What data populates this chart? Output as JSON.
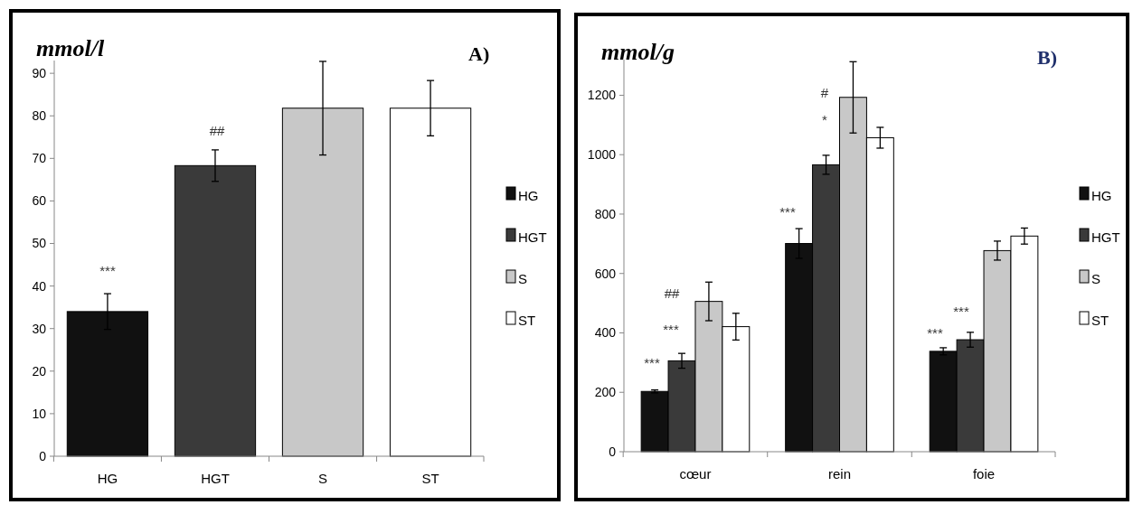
{
  "chart_data": [
    {
      "type": "bar",
      "title": "A)",
      "ylabel": "mmol/l",
      "categories": [
        "HG",
        "HGT",
        "S",
        "ST"
      ],
      "ylim": [
        0,
        93
      ],
      "yticks": [
        0,
        10,
        20,
        30,
        40,
        50,
        60,
        70,
        80,
        90
      ],
      "legend": "right",
      "series": [
        {
          "name": "HG",
          "color": "#111111",
          "values": [
            34,
            null,
            null,
            null
          ],
          "errors": [
            4.2,
            null,
            null,
            null
          ]
        },
        {
          "name": "HGT",
          "color": "#3a3a3a",
          "values": [
            null,
            68.3,
            null,
            null
          ],
          "errors": [
            null,
            3.7,
            null,
            null
          ]
        },
        {
          "name": "S",
          "color": "#c8c8c8",
          "values": [
            null,
            null,
            81.8,
            null
          ],
          "errors": [
            null,
            null,
            11,
            null
          ]
        },
        {
          "name": "ST",
          "color": "#ffffff",
          "values": [
            null,
            null,
            null,
            81.8
          ],
          "errors": [
            null,
            null,
            null,
            6.5
          ]
        }
      ],
      "annotations": [
        "***",
        "##"
      ]
    },
    {
      "type": "bar",
      "title": "B)",
      "ylabel": "mmol/g",
      "categories": [
        "cœur",
        "rein",
        "foie"
      ],
      "ylim": [
        0,
        1320
      ],
      "yticks": [
        0,
        200,
        400,
        600,
        800,
        1000,
        1200
      ],
      "legend": "right",
      "series": [
        {
          "name": "HG",
          "color": "#111111",
          "values": [
            203,
            701,
            338
          ],
          "errors": [
            5,
            50,
            12
          ]
        },
        {
          "name": "HGT",
          "color": "#3a3a3a",
          "values": [
            306,
            966,
            377
          ],
          "errors": [
            25,
            32,
            25
          ]
        },
        {
          "name": "S",
          "color": "#c8c8c8",
          "values": [
            506,
            1193,
            677
          ],
          "errors": [
            65,
            120,
            32
          ]
        },
        {
          "name": "ST",
          "color": "#ffffff",
          "values": [
            421,
            1057,
            726
          ],
          "errors": [
            45,
            35,
            27
          ]
        }
      ],
      "annotations": [
        "***",
        "***",
        "##",
        "***",
        "#",
        "*",
        "***",
        "***"
      ]
    }
  ]
}
